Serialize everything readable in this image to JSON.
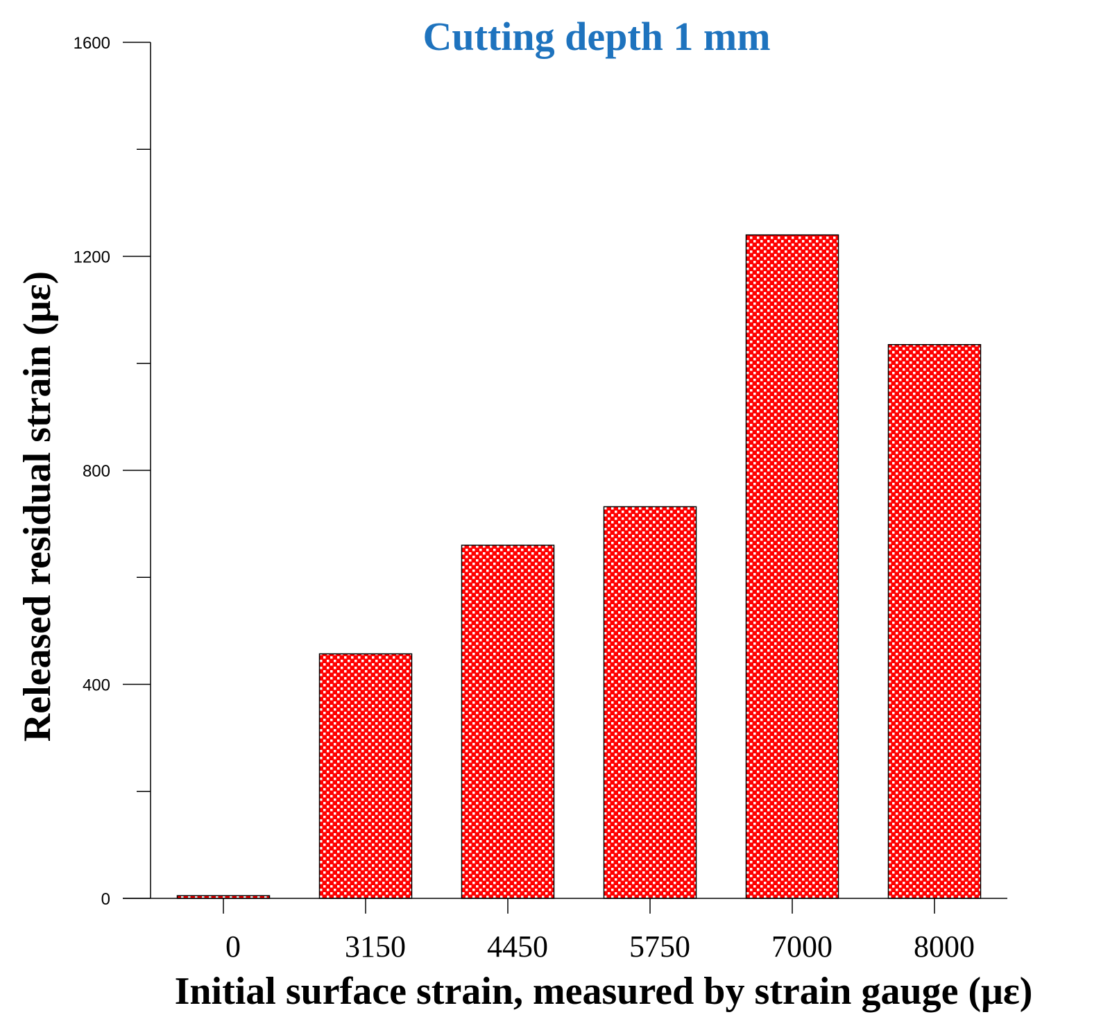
{
  "chart_data": {
    "type": "bar",
    "title": "Cutting depth 1 mm",
    "xlabel": "Initial surface strain, measured by strain gauge (με)",
    "ylabel": "Released residual strain (με)",
    "categories": [
      "0",
      "3150",
      "4450",
      "5750",
      "7000",
      "8000"
    ],
    "values": [
      5,
      457,
      660,
      732,
      1240,
      1035
    ],
    "ylim": [
      0,
      1600
    ],
    "y_major_ticks": [
      0,
      400,
      800,
      1200,
      1600
    ],
    "y_minor_ticks": [
      200,
      600,
      1000,
      1400
    ],
    "grid": false,
    "colors": {
      "title": "#1e73be",
      "bar_fill": "#ff0000",
      "bar_pattern": "#ffffff",
      "axis": "#000000"
    }
  }
}
